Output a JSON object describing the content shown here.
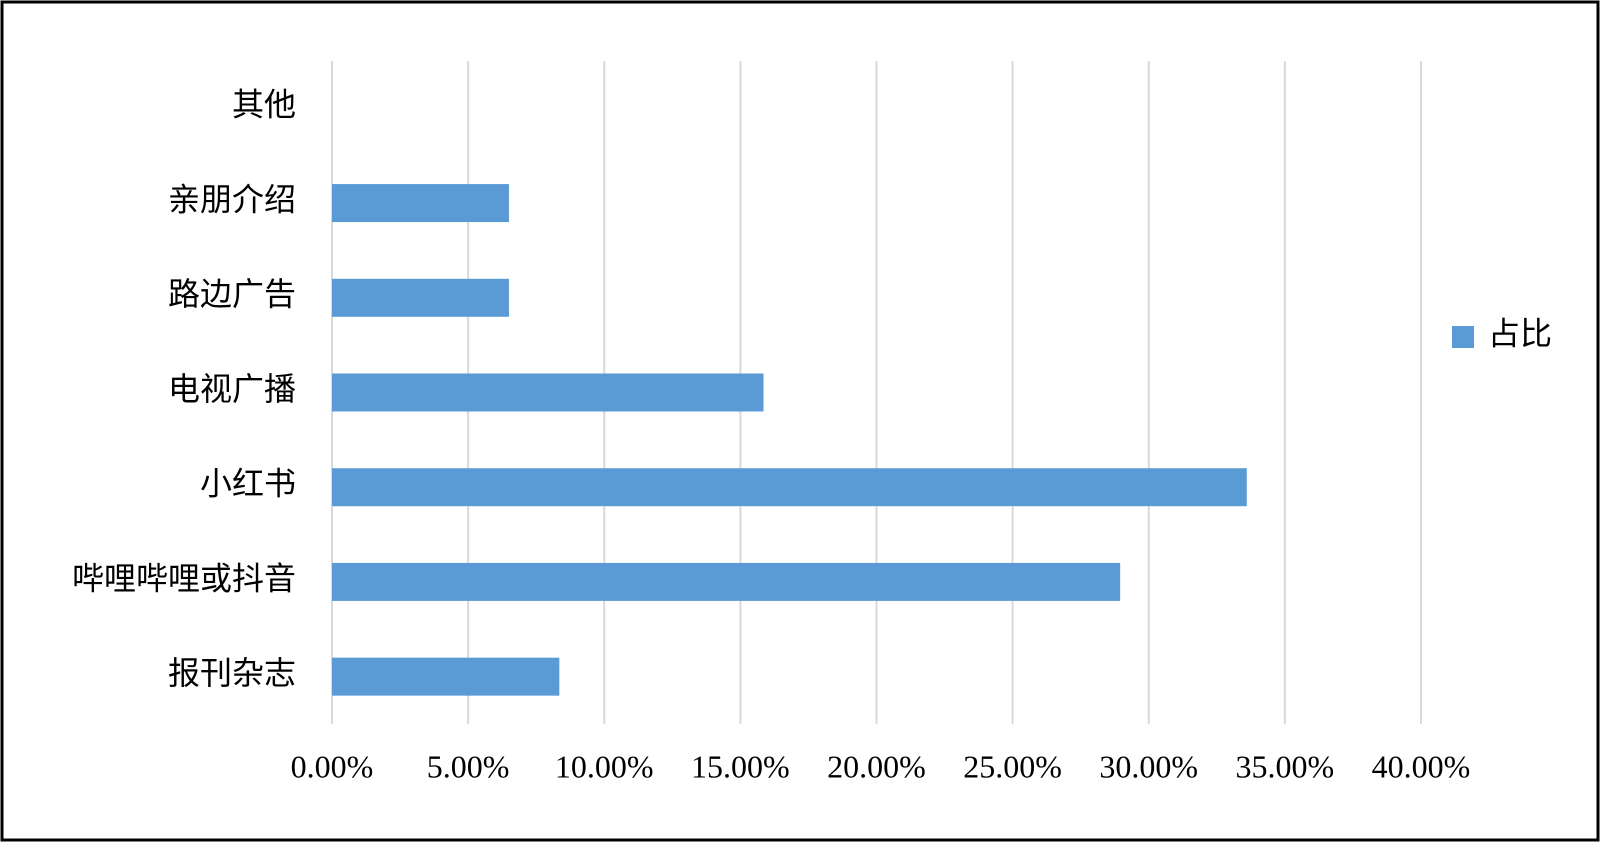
{
  "chart_data": {
    "type": "bar",
    "orientation": "horizontal",
    "categories": [
      "报刊杂志",
      "哔哩哔哩或抖音",
      "小红书",
      "电视广播",
      "路边广告",
      "亲朋介绍",
      "其他"
    ],
    "series": [
      {
        "name": "占比",
        "color": "#5b9bd5",
        "values": [
          8.35,
          28.95,
          33.6,
          15.85,
          6.5,
          6.5,
          0
        ]
      }
    ],
    "xlim": [
      0,
      40
    ],
    "xticks": [
      {
        "value": 0,
        "label": "0.00%"
      },
      {
        "value": 5,
        "label": "5.00%"
      },
      {
        "value": 10,
        "label": "10.00%"
      },
      {
        "value": 15,
        "label": "15.00%"
      },
      {
        "value": 20,
        "label": "20.00%"
      },
      {
        "value": 25,
        "label": "25.00%"
      },
      {
        "value": 30,
        "label": "30.00%"
      },
      {
        "value": 35,
        "label": "35.00%"
      },
      {
        "value": 40,
        "label": "40.00%"
      }
    ],
    "grid": true,
    "legend": "right"
  }
}
